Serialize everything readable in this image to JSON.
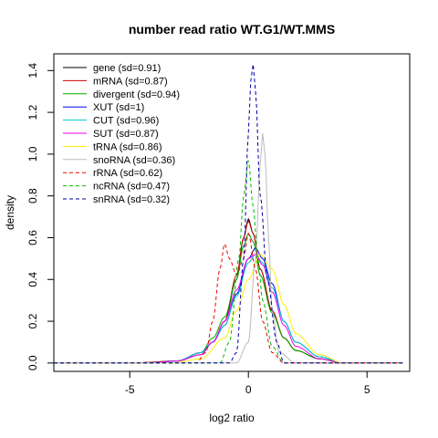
{
  "chart_data": {
    "type": "line",
    "title": "number read ratio WT.G1/WT.MMS",
    "xlabel": "log2 ratio",
    "ylabel": "density",
    "xlim": [
      -8.2,
      6.8
    ],
    "ylim": [
      -0.04,
      1.48
    ],
    "x_ticks": [
      -5,
      0,
      5
    ],
    "y_ticks": [
      0.0,
      0.2,
      0.4,
      0.6,
      0.8,
      1.0,
      1.2,
      1.4
    ],
    "grid": false,
    "legend_position": "top-left",
    "series": [
      {
        "name": "gene (sd=0.91)",
        "color": "#000000",
        "dash": "solid",
        "x": [
          -4.5,
          -3,
          -2,
          -1.5,
          -1,
          -0.5,
          -0.2,
          0,
          0.2,
          0.5,
          1,
          1.5,
          2,
          3,
          4
        ],
        "y": [
          0.002,
          0.01,
          0.05,
          0.1,
          0.2,
          0.4,
          0.6,
          0.69,
          0.62,
          0.45,
          0.25,
          0.12,
          0.06,
          0.02,
          0.0
        ]
      },
      {
        "name": "mRNA (sd=0.87)",
        "color": "#cc0000",
        "dash": "solid",
        "x": [
          -4.5,
          -3,
          -2,
          -1.5,
          -1,
          -0.5,
          -0.2,
          0,
          0.2,
          0.5,
          1,
          1.5,
          2,
          3,
          4
        ],
        "y": [
          0.002,
          0.01,
          0.04,
          0.1,
          0.2,
          0.42,
          0.6,
          0.68,
          0.62,
          0.45,
          0.25,
          0.12,
          0.06,
          0.02,
          0.0
        ]
      },
      {
        "name": "divergent (sd=0.94)",
        "color": "#00aa00",
        "dash": "solid",
        "x": [
          -4,
          -3,
          -2,
          -1.5,
          -1,
          -0.5,
          -0.2,
          0,
          0.2,
          0.5,
          1,
          1.5,
          2,
          3,
          4
        ],
        "y": [
          0.002,
          0.01,
          0.05,
          0.12,
          0.22,
          0.4,
          0.56,
          0.62,
          0.58,
          0.42,
          0.24,
          0.12,
          0.06,
          0.02,
          0.0
        ]
      },
      {
        "name": "XUT (sd=1)",
        "color": "#0000ee",
        "dash": "solid",
        "x": [
          -4,
          -3,
          -2,
          -1.5,
          -1,
          -0.5,
          0,
          0.3,
          0.6,
          1,
          1.5,
          2,
          3,
          4
        ],
        "y": [
          0.002,
          0.01,
          0.05,
          0.1,
          0.18,
          0.33,
          0.5,
          0.55,
          0.5,
          0.38,
          0.2,
          0.1,
          0.03,
          0.0
        ]
      },
      {
        "name": "CUT (sd=0.96)",
        "color": "#00cccc",
        "dash": "solid",
        "x": [
          -4,
          -3,
          -2,
          -1.5,
          -1,
          -0.5,
          0,
          0.3,
          0.6,
          1,
          1.5,
          2,
          3,
          4
        ],
        "y": [
          0.002,
          0.01,
          0.05,
          0.1,
          0.18,
          0.32,
          0.48,
          0.52,
          0.48,
          0.36,
          0.2,
          0.1,
          0.03,
          0.0
        ]
      },
      {
        "name": "SUT (sd=0.87)",
        "color": "#ee00ee",
        "dash": "solid",
        "x": [
          -4,
          -3,
          -2,
          -1.5,
          -1,
          -0.5,
          0,
          0.3,
          0.6,
          1,
          1.5,
          2,
          3,
          4
        ],
        "y": [
          0.002,
          0.01,
          0.04,
          0.1,
          0.2,
          0.35,
          0.5,
          0.52,
          0.47,
          0.34,
          0.18,
          0.08,
          0.02,
          0.0
        ]
      },
      {
        "name": "tRNA (sd=0.86)",
        "color": "#ffee00",
        "dash": "solid",
        "x": [
          -3,
          -2,
          -1,
          -0.5,
          0,
          0.5,
          1,
          1.5,
          2,
          3,
          4
        ],
        "y": [
          0.005,
          0.02,
          0.12,
          0.25,
          0.4,
          0.52,
          0.45,
          0.28,
          0.14,
          0.04,
          0.0
        ]
      },
      {
        "name": "snoRNA (sd=0.36)",
        "color": "#bbbbbb",
        "dash": "solid",
        "x": [
          -0.5,
          0,
          0.3,
          0.5,
          0.6,
          0.7,
          0.85,
          1,
          1.3,
          2
        ],
        "y": [
          0.0,
          0.1,
          0.5,
          0.95,
          1.1,
          1.0,
          0.6,
          0.25,
          0.05,
          0.0
        ]
      },
      {
        "name": "rRNA (sd=0.62)",
        "color": "#ee0000",
        "dash": "dashed",
        "x": [
          -2.2,
          -1.8,
          -1.5,
          -1.2,
          -1,
          -0.8,
          -0.5,
          -0.2,
          0,
          0.3,
          0.6,
          1,
          1.5
        ],
        "y": [
          0.0,
          0.05,
          0.2,
          0.45,
          0.57,
          0.5,
          0.42,
          0.5,
          0.62,
          0.45,
          0.2,
          0.05,
          0.0
        ]
      },
      {
        "name": "ncRNA (sd=0.47)",
        "color": "#00bb00",
        "dash": "dashed",
        "x": [
          -1.2,
          -0.8,
          -0.4,
          -0.2,
          0,
          0.2,
          0.4,
          0.6,
          1,
          1.5
        ],
        "y": [
          0.0,
          0.1,
          0.5,
          0.8,
          0.97,
          0.75,
          0.5,
          0.3,
          0.08,
          0.0
        ]
      },
      {
        "name": "snRNA (sd=0.32)",
        "color": "#0000aa",
        "dash": "dashed",
        "x": [
          -0.8,
          -0.5,
          -0.2,
          0,
          0.1,
          0.2,
          0.3,
          0.5,
          0.8,
          1.2,
          1.5
        ],
        "y": [
          0.0,
          0.05,
          0.5,
          1.1,
          1.35,
          1.43,
          1.3,
          0.8,
          0.4,
          0.1,
          0.0
        ]
      }
    ]
  }
}
